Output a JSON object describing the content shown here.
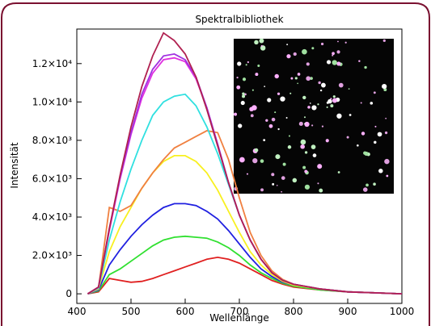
{
  "chart_data": {
    "type": "line",
    "title": "Spektralbibliothek",
    "xlabel": "Wellenlänge",
    "ylabel": "Intensität",
    "x": [
      420,
      440,
      460,
      480,
      500,
      520,
      540,
      560,
      580,
      600,
      620,
      640,
      660,
      680,
      700,
      720,
      740,
      760,
      780,
      800,
      850,
      900,
      950,
      1000
    ],
    "xlim": [
      400,
      1000
    ],
    "xticks": [
      400,
      500,
      600,
      700,
      800,
      900,
      1000
    ],
    "ylim": [
      -500,
      13800
    ],
    "yticks": [
      0,
      {
        "value": 2000,
        "label": "2.0×10³"
      },
      {
        "value": 4000,
        "label": "4.0×10³"
      },
      {
        "value": 6000,
        "label": "6.0×10³"
      },
      {
        "value": 8000,
        "label": "8.0×10³"
      },
      {
        "value": 10000,
        "label": "1.0×10⁴"
      },
      {
        "value": 12000,
        "label": "1.2×10⁴"
      }
    ],
    "series": [
      {
        "color": "#e02020",
        "values": [
          0,
          100,
          800,
          700,
          600,
          650,
          800,
          1000,
          1200,
          1400,
          1600,
          1800,
          1900,
          1800,
          1600,
          1300,
          1000,
          700,
          500,
          350,
          200,
          100,
          50,
          0
        ]
      },
      {
        "color": "#30e030",
        "values": [
          0,
          150,
          1000,
          1300,
          1700,
          2100,
          2500,
          2800,
          2950,
          3000,
          2950,
          2900,
          2700,
          2400,
          2000,
          1500,
          1100,
          800,
          550,
          400,
          200,
          100,
          50,
          0
        ]
      },
      {
        "color": "#2020e0",
        "values": [
          0,
          200,
          1500,
          2300,
          3000,
          3600,
          4100,
          4500,
          4700,
          4700,
          4600,
          4300,
          3900,
          3300,
          2600,
          1900,
          1300,
          900,
          600,
          450,
          250,
          100,
          50,
          0
        ]
      },
      {
        "color": "#f8f020",
        "values": [
          0,
          250,
          2200,
          3500,
          4500,
          5500,
          6300,
          6900,
          7200,
          7200,
          6900,
          6300,
          5400,
          4300,
          3200,
          2200,
          1500,
          1000,
          650,
          450,
          250,
          100,
          50,
          0
        ]
      },
      {
        "color": "#f08040",
        "values": [
          0,
          300,
          4500,
          4300,
          4600,
          5500,
          6300,
          7000,
          7600,
          7900,
          8200,
          8500,
          8400,
          7000,
          5000,
          3200,
          2000,
          1200,
          750,
          500,
          250,
          100,
          50,
          0
        ]
      },
      {
        "color": "#30e0e0",
        "values": [
          0,
          300,
          2800,
          4800,
          6500,
          8000,
          9300,
          10000,
          10300,
          10400,
          9800,
          8700,
          7300,
          5700,
          4100,
          2800,
          1800,
          1100,
          700,
          500,
          250,
          100,
          50,
          0
        ]
      },
      {
        "color": "#e030e0",
        "values": [
          0,
          350,
          3300,
          6000,
          8300,
          10200,
          11500,
          12200,
          12300,
          12100,
          11200,
          9700,
          7800,
          5800,
          4100,
          2800,
          1800,
          1100,
          700,
          500,
          250,
          100,
          50,
          0
        ]
      },
      {
        "color": "#a030e0",
        "values": [
          0,
          350,
          3400,
          6100,
          8400,
          10400,
          11700,
          12400,
          12500,
          12200,
          11300,
          9700,
          7800,
          5800,
          4100,
          2800,
          1800,
          1100,
          700,
          500,
          250,
          100,
          50,
          0
        ]
      },
      {
        "color": "#b02050",
        "values": [
          0,
          350,
          3400,
          6200,
          8700,
          10800,
          12400,
          13600,
          13200,
          12500,
          11300,
          9600,
          7700,
          5800,
          4100,
          2800,
          1800,
          1100,
          700,
          500,
          250,
          100,
          50,
          0
        ]
      }
    ]
  }
}
